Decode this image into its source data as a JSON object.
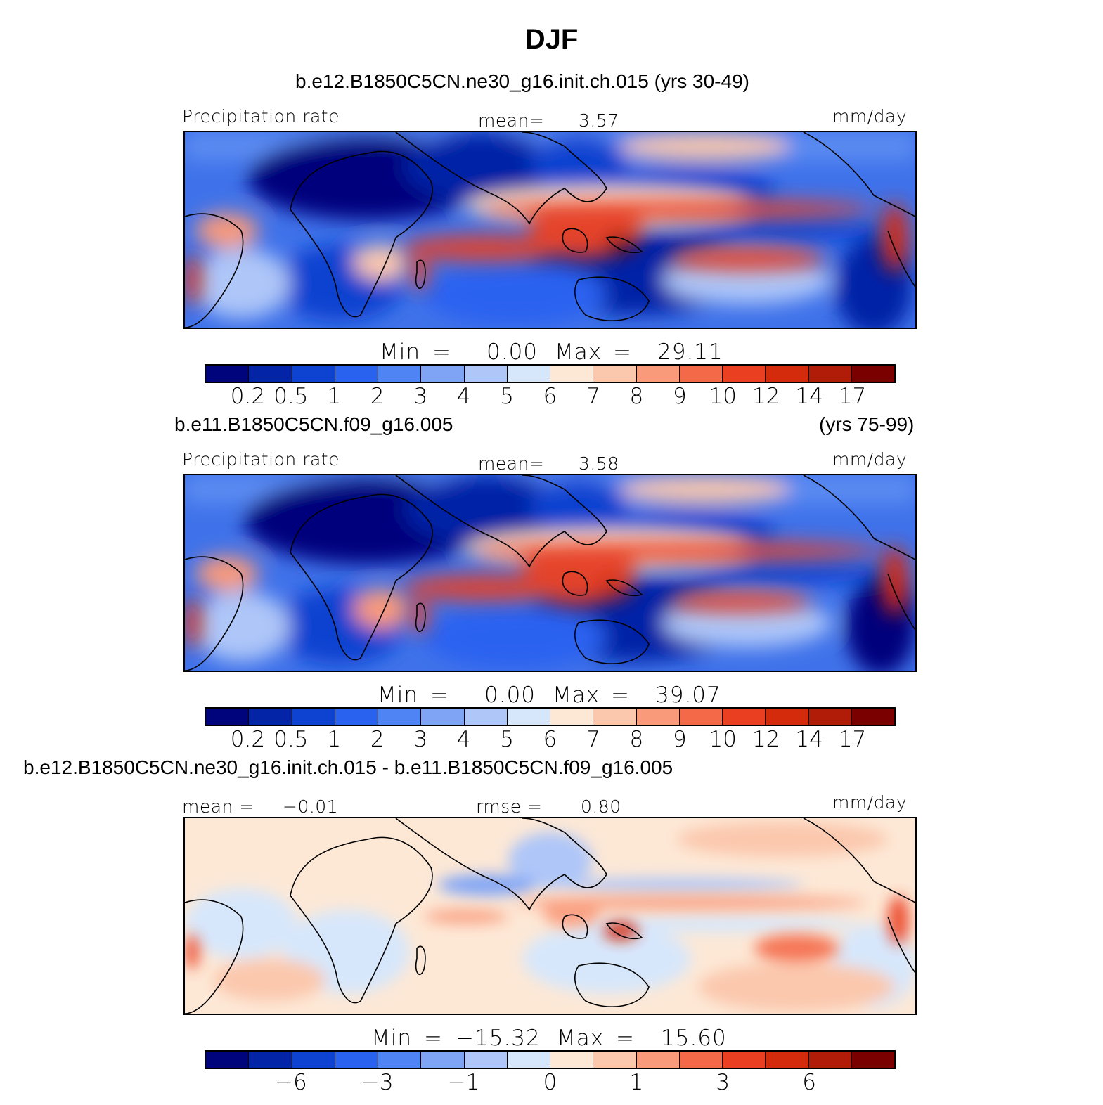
{
  "title": "DJF",
  "panels": [
    {
      "case": "b.e12.B1850C5CN.ne30_g16.init.ch.015 (yrs 30-49)",
      "left_label": "Precipitation rate",
      "mean_label": "mean=",
      "mean_value": "3.57",
      "units": "mm/day",
      "min_label": "Min",
      "min_value": "0.00",
      "max_label": "Max",
      "max_value": "29.11",
      "eq": "="
    },
    {
      "case": "b.e11.B1850C5CN.f09_g16.005",
      "case_years": "(yrs 75-99)",
      "left_label": "Precipitation rate",
      "mean_label": "mean=",
      "mean_value": "3.58",
      "units": "mm/day",
      "min_label": "Min",
      "min_value": "0.00",
      "max_label": "Max",
      "max_value": "39.07",
      "eq": "="
    },
    {
      "case": "b.e12.B1850C5CN.ne30_g16.init.ch.015 - b.e11.B1850C5CN.f09_g16.005",
      "mean_label": "mean =",
      "mean_value": "−0.01",
      "rmse_label": "rmse =",
      "rmse_value": "0.80",
      "units": "mm/day",
      "min_label": "Min",
      "min_value": "−15.32",
      "max_label": "Max",
      "max_value": "15.60",
      "eq": "="
    }
  ],
  "colorbar_abs": {
    "colors": [
      "#00047c",
      "#0324a6",
      "#0d43d0",
      "#2a62f0",
      "#4f84f4",
      "#7fa4f6",
      "#aec6f8",
      "#d7e7fb",
      "#fde8d6",
      "#fbc8ad",
      "#f99a7a",
      "#f46a48",
      "#ea4021",
      "#d42b0c",
      "#b01c08",
      "#7a0000"
    ],
    "ticks": [
      "0.2",
      "0.5",
      "1",
      "2",
      "3",
      "4",
      "5",
      "6",
      "7",
      "8",
      "9",
      "10",
      "12",
      "14",
      "17"
    ]
  },
  "colorbar_diff": {
    "colors": [
      "#00047c",
      "#0324a6",
      "#0d43d0",
      "#2a62f0",
      "#4f84f4",
      "#7fa4f6",
      "#aec6f8",
      "#d7e7fb",
      "#fde8d6",
      "#fbc8ad",
      "#f99a7a",
      "#f46a48",
      "#ea4021",
      "#d42b0c",
      "#b01c08",
      "#7a0000"
    ],
    "ticks": [
      {
        "label": "−6",
        "boundary": 2
      },
      {
        "label": "−3",
        "boundary": 4
      },
      {
        "label": "−1",
        "boundary": 6
      },
      {
        "label": "0",
        "boundary": 8
      },
      {
        "label": "1",
        "boundary": 10
      },
      {
        "label": "3",
        "boundary": 12
      },
      {
        "label": "6",
        "boundary": 14
      }
    ]
  }
}
